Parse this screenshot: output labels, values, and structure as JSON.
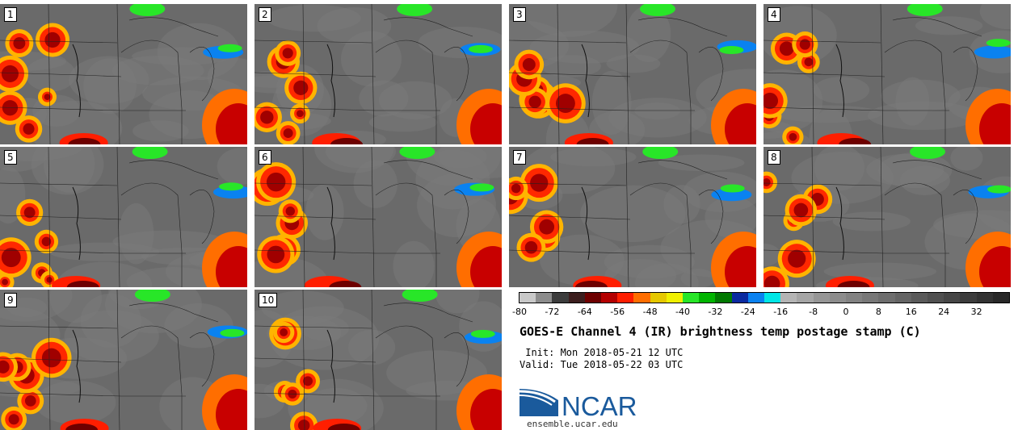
{
  "panels": [
    {
      "label": "1"
    },
    {
      "label": "2"
    },
    {
      "label": "3"
    },
    {
      "label": "4"
    },
    {
      "label": "5"
    },
    {
      "label": "6"
    },
    {
      "label": "7"
    },
    {
      "label": "8"
    },
    {
      "label": "9"
    },
    {
      "label": "10"
    }
  ],
  "colorbar": {
    "ticks": [
      "-80",
      "-72",
      "-64",
      "-56",
      "-48",
      "-40",
      "-32",
      "-24",
      "-16",
      "-8",
      "0",
      "8",
      "16",
      "24",
      "32"
    ],
    "colors": [
      "#c8c8c8",
      "#8c8c8c",
      "#3c3c3c",
      "#3c1e1e",
      "#6e0000",
      "#b40000",
      "#ff1e00",
      "#ff6e00",
      "#e6c800",
      "#f0f000",
      "#28e628",
      "#00b400",
      "#007800",
      "#0a2aa0",
      "#0a82f0",
      "#00e6e6",
      "#b4b4b4",
      "#a5a5a5",
      "#969696",
      "#8c8c8c",
      "#828282",
      "#787878",
      "#6e6e6e",
      "#646464",
      "#5a5a5a",
      "#505050",
      "#464646",
      "#3c3c3c",
      "#323232",
      "#282828"
    ]
  },
  "title": "GOES-E Channel 4 (IR) brightness temp postage stamp (C)",
  "init_text": " Init: Mon 2018-05-21 12 UTC",
  "valid_text": "Valid: Tue 2018-05-22 03 UTC",
  "logo": {
    "text": "NCAR",
    "url": "ensemble.ucar.edu",
    "color": "#1a5a9c"
  }
}
